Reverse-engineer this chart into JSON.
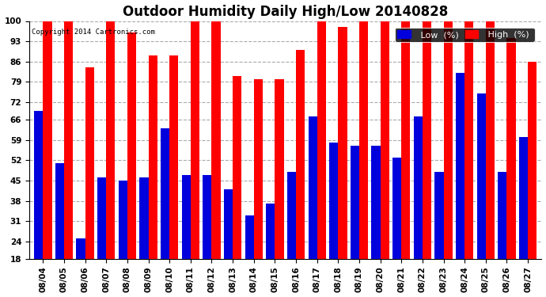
{
  "title": "Outdoor Humidity Daily High/Low 20140828",
  "copyright": "Copyright 2014 Cartronics.com",
  "dates": [
    "08/04",
    "08/05",
    "08/06",
    "08/07",
    "08/08",
    "08/09",
    "08/10",
    "08/11",
    "08/12",
    "08/13",
    "08/14",
    "08/15",
    "08/16",
    "08/17",
    "08/18",
    "08/19",
    "08/20",
    "08/21",
    "08/22",
    "08/23",
    "08/24",
    "08/25",
    "08/26",
    "08/27"
  ],
  "high": [
    100,
    100,
    84,
    100,
    96,
    88,
    88,
    100,
    100,
    81,
    80,
    80,
    90,
    100,
    98,
    100,
    100,
    100,
    100,
    100,
    100,
    100,
    94,
    86
  ],
  "low": [
    69,
    51,
    25,
    46,
    45,
    46,
    63,
    47,
    47,
    42,
    33,
    37,
    48,
    67,
    58,
    57,
    57,
    53,
    67,
    48,
    82,
    75,
    48,
    60
  ],
  "high_color": "#ff0000",
  "low_color": "#0000dd",
  "background_color": "#ffffff",
  "grid_color": "#aaaaaa",
  "ylim_min": 18,
  "ylim_max": 100,
  "yticks": [
    18,
    24,
    31,
    38,
    45,
    52,
    59,
    66,
    72,
    79,
    86,
    93,
    100
  ],
  "bar_width": 0.42,
  "title_fontsize": 12,
  "tick_fontsize": 7.5,
  "legend_fontsize": 8
}
